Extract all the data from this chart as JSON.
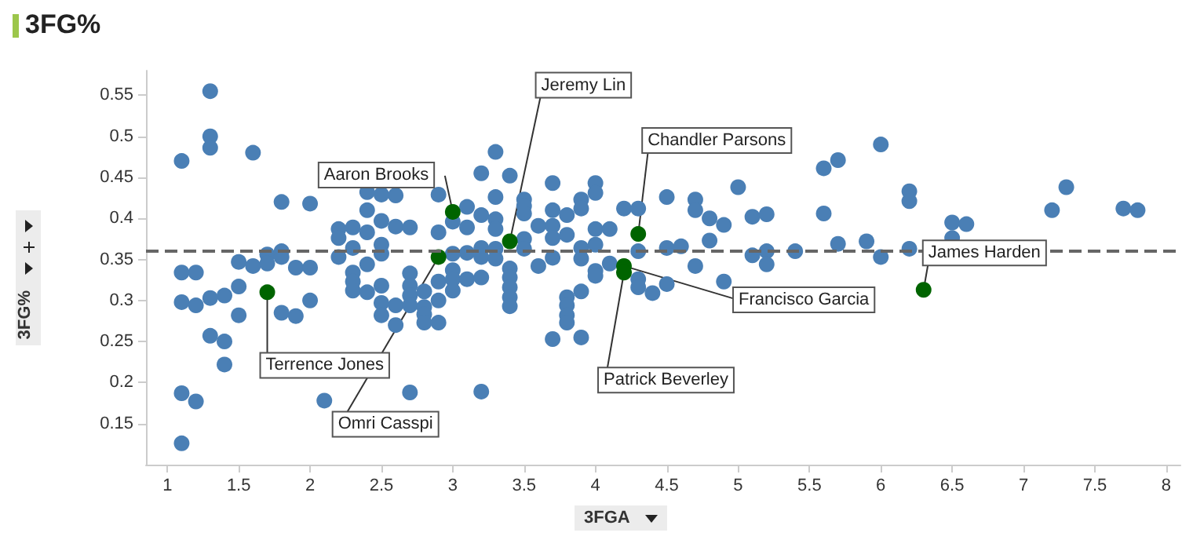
{
  "chart_data": {
    "type": "scatter",
    "title": "3FG%",
    "xlabel": "3FGA",
    "ylabel": "3FG%",
    "xlim": [
      0.85,
      8.1
    ],
    "ylim": [
      0.1,
      0.58
    ],
    "xticks": [
      1,
      1.5,
      2,
      2.5,
      3,
      3.5,
      4,
      4.5,
      5,
      5.5,
      6,
      6.5,
      7,
      7.5,
      8
    ],
    "yticks": [
      0.15,
      0.2,
      0.25,
      0.3,
      0.35,
      0.4,
      0.45,
      0.5,
      0.55
    ],
    "grid": false,
    "marker": "circle",
    "series": [
      {
        "color": "#4a7fb5",
        "x": [
          1.3,
          1.3,
          1.3,
          1.1,
          1.6,
          1.8,
          2.0,
          1.1,
          1.2,
          1.1,
          1.2,
          1.3,
          1.4,
          1.5,
          1.5,
          1.6,
          1.7,
          1.7,
          1.8,
          1.8,
          1.9,
          2.0,
          2.0,
          1.8,
          1.9,
          1.5,
          1.3,
          1.4,
          1.4,
          1.1,
          1.2,
          1.1,
          2.1,
          2.7,
          2.2,
          2.2,
          2.2,
          2.3,
          2.3,
          2.3,
          2.3,
          2.3,
          2.4,
          2.4,
          2.4,
          2.4,
          2.4,
          2.5,
          2.5,
          2.5,
          2.5,
          2.5,
          2.5,
          2.5,
          2.6,
          2.6,
          2.6,
          2.6,
          2.7,
          2.7,
          2.7,
          2.7,
          2.7,
          2.8,
          2.8,
          2.8,
          2.8,
          2.9,
          2.9,
          2.9,
          2.9,
          2.9,
          3.0,
          3.0,
          3.0,
          3.0,
          3.0,
          3.1,
          3.1,
          3.1,
          3.1,
          3.2,
          3.2,
          3.2,
          3.2,
          3.2,
          3.2,
          3.3,
          3.3,
          3.3,
          3.3,
          3.3,
          3.3,
          3.4,
          3.4,
          3.4,
          3.4,
          3.4,
          3.4,
          3.5,
          3.5,
          3.5,
          3.5,
          3.5,
          3.6,
          3.6,
          3.7,
          3.7,
          3.7,
          3.7,
          3.7,
          3.7,
          3.8,
          3.8,
          3.8,
          3.8,
          3.8,
          3.8,
          3.9,
          3.9,
          3.9,
          3.9,
          3.9,
          3.9,
          4.0,
          4.0,
          4.0,
          4.0,
          4.0,
          4.0,
          4.1,
          4.1,
          4.2,
          4.3,
          4.3,
          4.3,
          4.3,
          4.4,
          4.5,
          4.5,
          4.5,
          4.6,
          4.7,
          4.7,
          4.7,
          4.8,
          4.8,
          4.9,
          4.9,
          5.0,
          5.1,
          5.1,
          5.2,
          5.2,
          5.2,
          5.4,
          5.6,
          5.7,
          5.6,
          5.7,
          5.9,
          6.0,
          6.0,
          6.2,
          6.2,
          6.2,
          6.5,
          6.5,
          6.6,
          7.2,
          7.3,
          7.7,
          7.8
        ],
        "values": [
          0.555,
          0.5,
          0.486,
          0.47,
          0.48,
          0.42,
          0.418,
          0.334,
          0.334,
          0.298,
          0.294,
          0.303,
          0.306,
          0.317,
          0.347,
          0.342,
          0.356,
          0.345,
          0.36,
          0.353,
          0.34,
          0.34,
          0.3,
          0.285,
          0.281,
          0.282,
          0.257,
          0.25,
          0.222,
          0.187,
          0.177,
          0.126,
          0.178,
          0.188,
          0.387,
          0.376,
          0.353,
          0.389,
          0.364,
          0.334,
          0.323,
          0.312,
          0.432,
          0.41,
          0.383,
          0.344,
          0.31,
          0.429,
          0.397,
          0.368,
          0.357,
          0.318,
          0.297,
          0.282,
          0.428,
          0.39,
          0.294,
          0.27,
          0.389,
          0.333,
          0.318,
          0.306,
          0.294,
          0.311,
          0.292,
          0.283,
          0.273,
          0.429,
          0.383,
          0.323,
          0.3,
          0.273,
          0.396,
          0.357,
          0.337,
          0.326,
          0.312,
          0.414,
          0.389,
          0.358,
          0.326,
          0.189,
          0.404,
          0.364,
          0.353,
          0.328,
          0.455,
          0.481,
          0.426,
          0.399,
          0.387,
          0.363,
          0.351,
          0.452,
          0.339,
          0.328,
          0.316,
          0.304,
          0.293,
          0.423,
          0.415,
          0.406,
          0.375,
          0.363,
          0.391,
          0.342,
          0.443,
          0.41,
          0.391,
          0.376,
          0.352,
          0.253,
          0.404,
          0.38,
          0.304,
          0.294,
          0.282,
          0.273,
          0.423,
          0.412,
          0.364,
          0.351,
          0.311,
          0.255,
          0.443,
          0.431,
          0.387,
          0.368,
          0.336,
          0.33,
          0.387,
          0.345,
          0.412,
          0.412,
          0.36,
          0.326,
          0.316,
          0.309,
          0.426,
          0.364,
          0.32,
          0.366,
          0.423,
          0.41,
          0.342,
          0.4,
          0.373,
          0.392,
          0.323,
          0.438,
          0.402,
          0.355,
          0.405,
          0.36,
          0.344,
          0.36,
          0.461,
          0.471,
          0.406,
          0.369,
          0.372,
          0.49,
          0.353,
          0.433,
          0.421,
          0.363,
          0.395,
          0.376,
          0.393,
          0.41,
          0.438,
          0.412,
          0.41
        ]
      },
      {
        "color": "#006400",
        "x": [
          3.0,
          3.4,
          4.3,
          4.2,
          6.3,
          1.7,
          2.9,
          4.2
        ],
        "values": [
          0.408,
          0.372,
          0.381,
          0.342,
          0.313,
          0.31,
          0.353,
          0.334
        ]
      }
    ],
    "ref_lines": [
      {
        "axis": "y",
        "value": 0.36,
        "color": "#666666",
        "line_style": "dashed"
      }
    ],
    "annotations": [
      {
        "text": "Aaron Brooks",
        "x": 3.0,
        "y": 0.408
      },
      {
        "text": "Jeremy Lin",
        "x": 3.4,
        "y": 0.372
      },
      {
        "text": "Chandler Parsons",
        "x": 4.3,
        "y": 0.381
      },
      {
        "text": "Francisco Garcia",
        "x": 4.2,
        "y": 0.342
      },
      {
        "text": "James Harden",
        "x": 6.3,
        "y": 0.313
      },
      {
        "text": "Terrence Jones",
        "x": 1.7,
        "y": 0.31
      },
      {
        "text": "Omri Casspi",
        "x": 2.9,
        "y": 0.353
      },
      {
        "text": "Patrick Beverley",
        "x": 4.2,
        "y": 0.334
      }
    ]
  }
}
